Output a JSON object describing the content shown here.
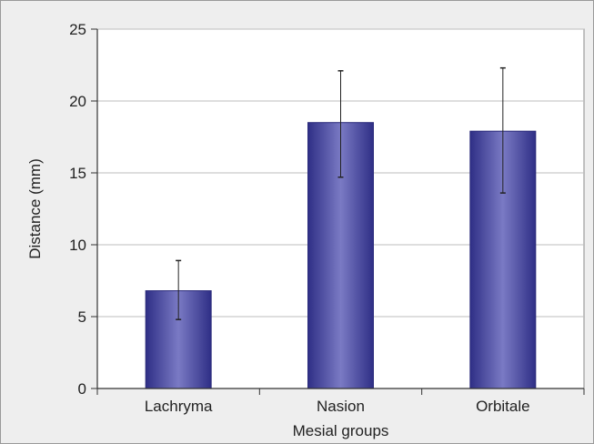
{
  "chart_data": {
    "type": "bar",
    "title": "",
    "xlabel": "Mesial groups",
    "ylabel": "Distance (mm)",
    "categories": [
      "Lachryma",
      "Nasion",
      "Orbitale"
    ],
    "values": [
      6.8,
      18.5,
      17.9
    ],
    "error_low": [
      4.8,
      14.7,
      13.6
    ],
    "error_high": [
      8.9,
      22.1,
      22.3
    ],
    "ylim": [
      0,
      25
    ],
    "yticks": [
      0,
      5,
      10,
      15,
      20,
      25
    ],
    "grid": true,
    "legend": "none",
    "colors": {
      "bar_edge": "#2a2a7a",
      "bar_mid": "#7a7ac4",
      "bar_dark": "#2f2f86",
      "grid": "#bdbdbd",
      "plot_bg": "#ffffff",
      "error_bar": "#222222"
    }
  }
}
